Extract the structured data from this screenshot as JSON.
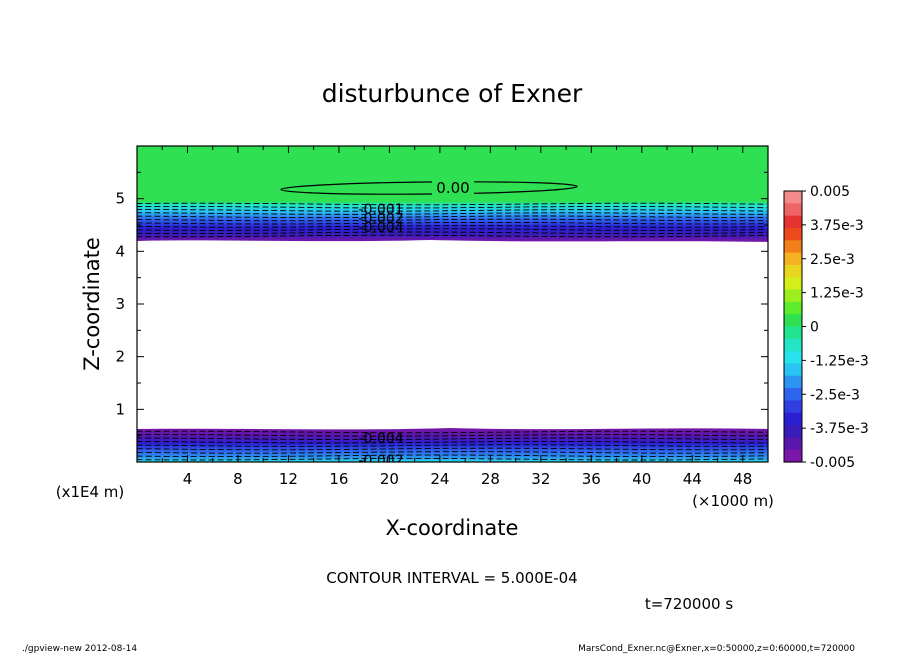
{
  "chart_data": {
    "type": "heatmap",
    "title": "disturbunce of Exner",
    "xlabel": "X-coordinate",
    "ylabel": "Z-coordinate",
    "x_unit": "(×1000 m)",
    "y_unit": "(x1E4 m)",
    "xlim": [
      0,
      50
    ],
    "ylim": [
      0,
      6
    ],
    "x_ticks": [
      "4",
      "8",
      "12",
      "16",
      "20",
      "24",
      "28",
      "32",
      "36",
      "40",
      "44",
      "48"
    ],
    "y_ticks": [
      "1",
      "2",
      "3",
      "4",
      "5"
    ],
    "grid": false,
    "colorbar": {
      "labels": [
        "0.005",
        "3.75e-3",
        "2.5e-3",
        "1.25e-3",
        "0",
        "-1.25e-3",
        "-2.5e-3",
        "-3.75e-3",
        "-0.005"
      ],
      "colors": [
        "#f48a8a",
        "#ef6565",
        "#e63232",
        "#ec4a1c",
        "#f27f1a",
        "#f6b321",
        "#e8d61f",
        "#d2ef1a",
        "#9cee1d",
        "#5cec2c",
        "#2ee052",
        "#22e38f",
        "#22e6c5",
        "#28e3ec",
        "#29c5f2",
        "#2c94f1",
        "#2f64ef",
        "#3040e0",
        "#2a1fd2",
        "#3a1cba",
        "#5b17ab",
        "#7a16a8"
      ]
    },
    "bands": [
      {
        "name": "upper_green",
        "z_range": [
          4.9,
          6.0
        ],
        "value": "0",
        "color": "#2ee052"
      },
      {
        "name": "upper_gradient",
        "z_range": [
          4.25,
          4.9
        ],
        "value_range": [
          "-0.005",
          "0"
        ]
      },
      {
        "name": "lower_gradient",
        "z_range": [
          0.0,
          0.62
        ],
        "value_range": [
          "-0.005",
          "-0.002"
        ]
      }
    ],
    "contour_labels": [
      "0.00",
      "-0.001",
      "-0.002",
      "-0.004",
      "-0.004",
      "-0.002"
    ],
    "annotations": [
      "CONTOUR INTERVAL = 5.000E-04",
      "t=720000 s"
    ]
  },
  "footer": {
    "left": "./gpview-new 2012-08-14",
    "right": "MarsCond_Exner.nc@Exner,x=0:50000,z=0:60000,t=720000"
  }
}
